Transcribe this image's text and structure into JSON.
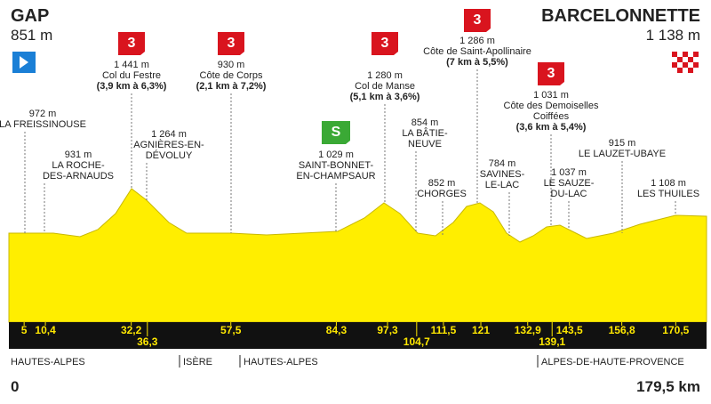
{
  "start": {
    "name": "GAP",
    "altitude": "851 m"
  },
  "finish": {
    "name": "BARCELONNETTE",
    "altitude": "1 138 m"
  },
  "climbs": [
    {
      "category": "3",
      "altitude": "1 441 m",
      "name": [
        "Col du Festre"
      ],
      "detail": "(3,9 km à 6,3%)"
    },
    {
      "category": "3",
      "altitude": "930 m",
      "name": [
        "Côte de Corps"
      ],
      "detail": "(2,1 km à 7,2%)"
    },
    {
      "category": "3",
      "altitude": "1 280 m",
      "name": [
        "Col de Manse"
      ],
      "detail": "(5,1 km à 3,6%)"
    },
    {
      "category": "3",
      "altitude": "1 286 m",
      "name": [
        "Côte de Saint-Apollinaire"
      ],
      "detail": "(7 km à 5,5%)"
    },
    {
      "category": "3",
      "altitude": "1 031 m",
      "name": [
        "Côte des Demoiselles",
        "Coiffées"
      ],
      "detail": "(3,6 km à 5,4%)"
    }
  ],
  "sprint": {
    "icon": "S",
    "altitude": "1 029 m",
    "name": [
      "SAINT-BONNET-",
      "EN-CHAMPSAUR"
    ]
  },
  "waypoints": [
    {
      "altitude": "972 m",
      "name": [
        "LA FREISSINOUSE"
      ]
    },
    {
      "altitude": "931 m",
      "name": [
        "LA ROCHE-",
        "DES-ARNAUDS"
      ]
    },
    {
      "altitude": "1 264 m",
      "name": [
        "AGNIÈRES-EN-",
        "DÉVOLUY"
      ]
    },
    {
      "altitude": "854 m",
      "name": [
        "LA BÂTIE-",
        "NEUVE"
      ]
    },
    {
      "altitude": "852 m",
      "name": [
        "CHORGES"
      ]
    },
    {
      "altitude": "784 m",
      "name": [
        "SAVINES-",
        "LE-LAC"
      ]
    },
    {
      "altitude": "915 m",
      "name": [
        "LE LAUZET-UBAYE"
      ]
    },
    {
      "altitude": "1 037 m",
      "name": [
        "LE SAUZE-",
        "DU-LAC"
      ]
    },
    {
      "altitude": "1 108 m",
      "name": [
        "LES THUILES"
      ]
    }
  ],
  "km_markers": [
    {
      "value": 5,
      "label": "5"
    },
    {
      "value": 10.4,
      "label": "10,4"
    },
    {
      "value": 32.2,
      "label": "32,2"
    },
    {
      "value": 36.3,
      "label": "36,3"
    },
    {
      "value": 57.5,
      "label": "57,5"
    },
    {
      "value": 84.3,
      "label": "84,3"
    },
    {
      "value": 97.3,
      "label": "97,3"
    },
    {
      "value": 104.7,
      "label": "104,7"
    },
    {
      "value": 111.5,
      "label": "111,5"
    },
    {
      "value": 121,
      "label": "121"
    },
    {
      "value": 132.9,
      "label": "132,9"
    },
    {
      "value": 139.1,
      "label": "139,1"
    },
    {
      "value": 143.5,
      "label": "143,5"
    },
    {
      "value": 156.8,
      "label": "156,8"
    },
    {
      "value": 170.5,
      "label": "170,5"
    }
  ],
  "regions": [
    "HAUTES-ALPES",
    "ISÈRE",
    "HAUTES-ALPES",
    "ALPES-DE-HAUTE-PROVENCE"
  ],
  "distance_start": "0",
  "distance_total": "179,5 km"
}
